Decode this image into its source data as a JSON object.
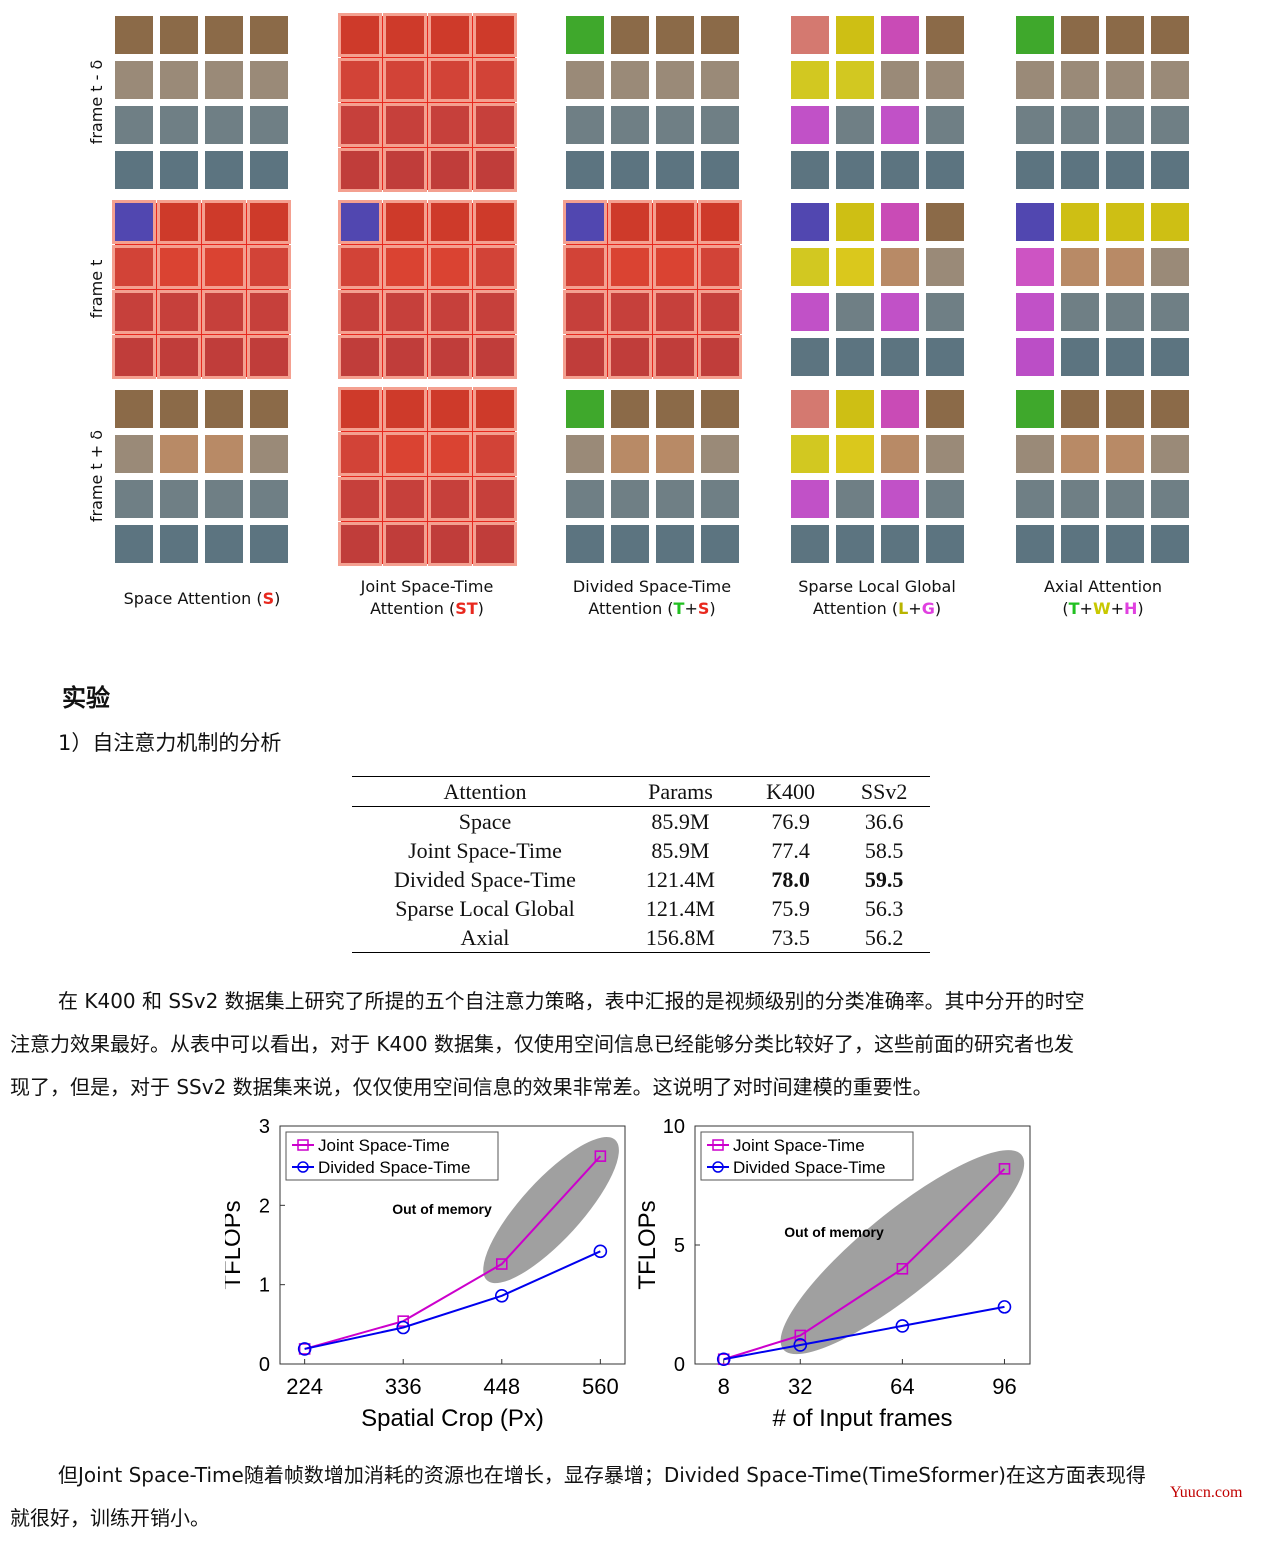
{
  "figure": {
    "row_labels": [
      "frame t - δ",
      "frame t",
      "frame t + δ"
    ],
    "captions": [
      {
        "line1": "Space Attention (",
        "line2": "",
        "parts": [
          {
            "t": "S",
            "c": "red"
          }
        ],
        "tail": ")"
      },
      {
        "line1": "Joint Space-Time",
        "line2": "Attention (",
        "parts": [
          {
            "t": "ST",
            "c": "red"
          }
        ],
        "tail": ")"
      },
      {
        "line1": "Divided Space-Time",
        "line2": "Attention (",
        "parts": [
          {
            "t": "T",
            "c": "green"
          },
          {
            "t": "+",
            "c": "plain"
          },
          {
            "t": "S",
            "c": "red"
          }
        ],
        "tail": ")"
      },
      {
        "line1": "Sparse Local Global",
        "line2": "Attention (",
        "parts": [
          {
            "t": "L",
            "c": "olive"
          },
          {
            "t": "+",
            "c": "plain"
          },
          {
            "t": "G",
            "c": "magenta"
          }
        ],
        "tail": ")"
      },
      {
        "line1": "Axial Attention",
        "line2": "(",
        "parts": [
          {
            "t": "T",
            "c": "green"
          },
          {
            "t": "+",
            "c": "plain"
          },
          {
            "t": "W",
            "c": "yg"
          },
          {
            "t": "+",
            "c": "plain"
          },
          {
            "t": "H",
            "c": "magenta"
          }
        ],
        "tail": ")"
      }
    ],
    "colors": {
      "red": "#e8281e",
      "green": "#21c021",
      "olive": "#b8b400",
      "magenta": "#e040e0",
      "yg": "#c8c800",
      "query": "#3a3ad8"
    }
  },
  "section": {
    "heading": "实验",
    "subheading": "1）自注意力机制的分析"
  },
  "table": {
    "headers": [
      "Attention",
      "Params",
      "K400",
      "SSv2"
    ],
    "rows": [
      [
        "Space",
        "85.9M",
        "76.9",
        "36.6"
      ],
      [
        "Joint Space-Time",
        "85.9M",
        "77.4",
        "58.5"
      ],
      [
        "Divided Space-Time",
        "121.4M",
        "78.0",
        "59.5"
      ],
      [
        "Sparse Local Global",
        "121.4M",
        "75.9",
        "56.3"
      ],
      [
        "Axial",
        "156.8M",
        "73.5",
        "56.2"
      ]
    ],
    "bold_row": 2
  },
  "paragraph1": {
    "line1": "在 K400 和 SSv2 数据集上研究了所提的五个自注意力策略，表中汇报的是视频级别的分类准确率。其中分开的时空",
    "line2": "注意力效果最好。从表中可以看出，对于 K400 数据集，仅使用空间信息已经能够分类比较好了，这些前面的研究者也发",
    "line3": "现了，但是，对于 SSv2 数据集来说，仅仅使用空间信息的效果非常差。这说明了对时间建模的重要性。"
  },
  "chart_data": [
    {
      "type": "line",
      "xlabel": "Spatial Crop (Px)",
      "ylabel": "TFLOPs",
      "x": [
        224,
        336,
        448,
        560
      ],
      "xticks": [
        "224",
        "336",
        "448",
        "560"
      ],
      "ylim": [
        0,
        3
      ],
      "yticks": [
        "0",
        "1",
        "2",
        "3"
      ],
      "annotation": "Out of memory",
      "legend_position": "top-left",
      "series": [
        {
          "name": "Joint Space-Time",
          "color": "#cc00cc",
          "marker": "square",
          "values": [
            0.19,
            0.54,
            1.26,
            2.62
          ]
        },
        {
          "name": "Divided Space-Time",
          "color": "#0000ee",
          "marker": "circle",
          "values": [
            0.19,
            0.46,
            0.86,
            1.42
          ]
        }
      ]
    },
    {
      "type": "line",
      "xlabel": "# of Input frames",
      "ylabel": "TFLOPs",
      "x": [
        8,
        32,
        64,
        96
      ],
      "xticks": [
        "8",
        "32",
        "64",
        "96"
      ],
      "ylim": [
        0,
        10
      ],
      "yticks": [
        "0",
        "5",
        "10"
      ],
      "annotation": "Out of memory",
      "legend_position": "top-left",
      "series": [
        {
          "name": "Joint Space-Time",
          "color": "#cc00cc",
          "marker": "square",
          "values": [
            0.2,
            1.2,
            4.0,
            8.2
          ]
        },
        {
          "name": "Divided Space-Time",
          "color": "#0000ee",
          "marker": "circle",
          "values": [
            0.2,
            0.8,
            1.6,
            2.4
          ]
        }
      ]
    }
  ],
  "paragraph2": {
    "line1": "但Joint Space-Time随着帧数增加消耗的资源也在增长，显存暴增；Divided Space-Time(TimeSformer)在这方面表现得",
    "line2": "就很好，训练开销小。"
  },
  "watermark": "Yuucn.com"
}
